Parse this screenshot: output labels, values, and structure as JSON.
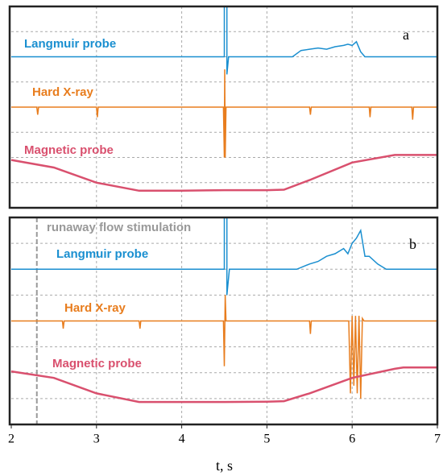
{
  "chart_data": [
    {
      "type": "line",
      "label": "a",
      "xlim": [
        2,
        7
      ],
      "ylim": [
        0,
        8
      ],
      "xgrid": [
        3,
        4,
        5,
        6
      ],
      "ygrid": [
        1,
        2,
        3,
        4,
        5,
        6,
        7
      ],
      "series": [
        {
          "name": "Langmuir probe",
          "color": "#1a8fd0",
          "x": [
            2,
            4.49,
            4.5,
            4.5,
            4.53,
            4.53,
            4.55,
            4.6,
            5.3,
            5.4,
            5.5,
            5.6,
            5.7,
            5.8,
            5.9,
            5.95,
            6.0,
            6.05,
            6.1,
            6.15,
            7
          ],
          "values": [
            6,
            6,
            6,
            8,
            8,
            5.3,
            6,
            6,
            6,
            6.25,
            6.3,
            6.35,
            6.3,
            6.4,
            6.45,
            6.5,
            6.45,
            6.6,
            6.2,
            6,
            6
          ]
        },
        {
          "name": "Hard X-ray",
          "color": "#e87d1e",
          "x": [
            2,
            2.3,
            2.31,
            2.32,
            3.0,
            3.01,
            3.02,
            4.49,
            4.5,
            4.505,
            4.51,
            4.52,
            4.6,
            5.5,
            5.51,
            5.52,
            6.2,
            6.21,
            6.22,
            6.7,
            6.71,
            6.72,
            7
          ],
          "values": [
            4,
            4,
            3.7,
            4,
            4,
            3.6,
            4,
            4,
            2,
            5.5,
            2,
            4,
            4,
            4,
            3.7,
            4,
            4,
            3.6,
            4,
            4,
            3.5,
            4,
            4
          ]
        },
        {
          "name": "Magnetic probe",
          "color": "#d9506e",
          "x": [
            2,
            2.5,
            3,
            3.5,
            4,
            4.5,
            5,
            5.2,
            5.5,
            6,
            6.5,
            7
          ],
          "values": [
            1.9,
            1.6,
            1.0,
            0.68,
            0.68,
            0.7,
            0.7,
            0.72,
            1.1,
            1.8,
            2.1,
            2.1
          ]
        }
      ]
    },
    {
      "type": "line",
      "label": "b",
      "annotation": "runaway flow  stimulation",
      "vline": 2.3,
      "xlim": [
        2,
        7
      ],
      "ylim": [
        0,
        8
      ],
      "xgrid": [
        3,
        4,
        5,
        6
      ],
      "ygrid": [
        1,
        2,
        3,
        4,
        5,
        6,
        7
      ],
      "xticks": [
        2,
        3,
        4,
        5,
        6,
        7
      ],
      "xlabel": "t, s",
      "series": [
        {
          "name": "Langmuir probe",
          "color": "#1a8fd0",
          "x": [
            2,
            4.49,
            4.5,
            4.5,
            4.53,
            4.53,
            4.56,
            4.6,
            5.35,
            5.5,
            5.6,
            5.7,
            5.8,
            5.9,
            5.95,
            6.0,
            6.05,
            6.1,
            6.15,
            6.2,
            6.3,
            6.4,
            7
          ],
          "values": [
            6,
            6,
            6,
            8,
            8,
            5.0,
            6,
            6,
            6,
            6.2,
            6.3,
            6.5,
            6.6,
            6.8,
            6.6,
            7.0,
            7.2,
            7.5,
            6.5,
            6.5,
            6.2,
            6,
            6
          ]
        },
        {
          "name": "Hard X-ray",
          "color": "#e87d1e",
          "x": [
            2,
            2.6,
            2.61,
            2.62,
            3.5,
            3.51,
            3.52,
            4.49,
            4.5,
            4.51,
            4.52,
            4.53,
            4.6,
            5.5,
            5.51,
            5.52,
            5.96,
            5.98,
            6.0,
            6.02,
            6.04,
            6.06,
            6.08,
            6.1,
            6.12,
            6.14,
            6.5,
            7
          ],
          "values": [
            4,
            4,
            3.7,
            4,
            4,
            3.7,
            4,
            4,
            2.25,
            5.0,
            4,
            4,
            4,
            4,
            3.5,
            4,
            4,
            1.2,
            4.2,
            1.5,
            4.2,
            1.2,
            4.2,
            1.0,
            4.1,
            4,
            4,
            4
          ]
        },
        {
          "name": "Magnetic probe",
          "color": "#d9506e",
          "x": [
            2,
            2.5,
            3,
            3.5,
            4,
            4.5,
            5,
            5.2,
            5.5,
            6,
            6.5,
            6.6,
            7
          ],
          "values": [
            2.05,
            1.8,
            1.2,
            0.87,
            0.87,
            0.87,
            0.88,
            0.9,
            1.2,
            1.8,
            2.15,
            2.2,
            2.2
          ]
        }
      ]
    }
  ]
}
